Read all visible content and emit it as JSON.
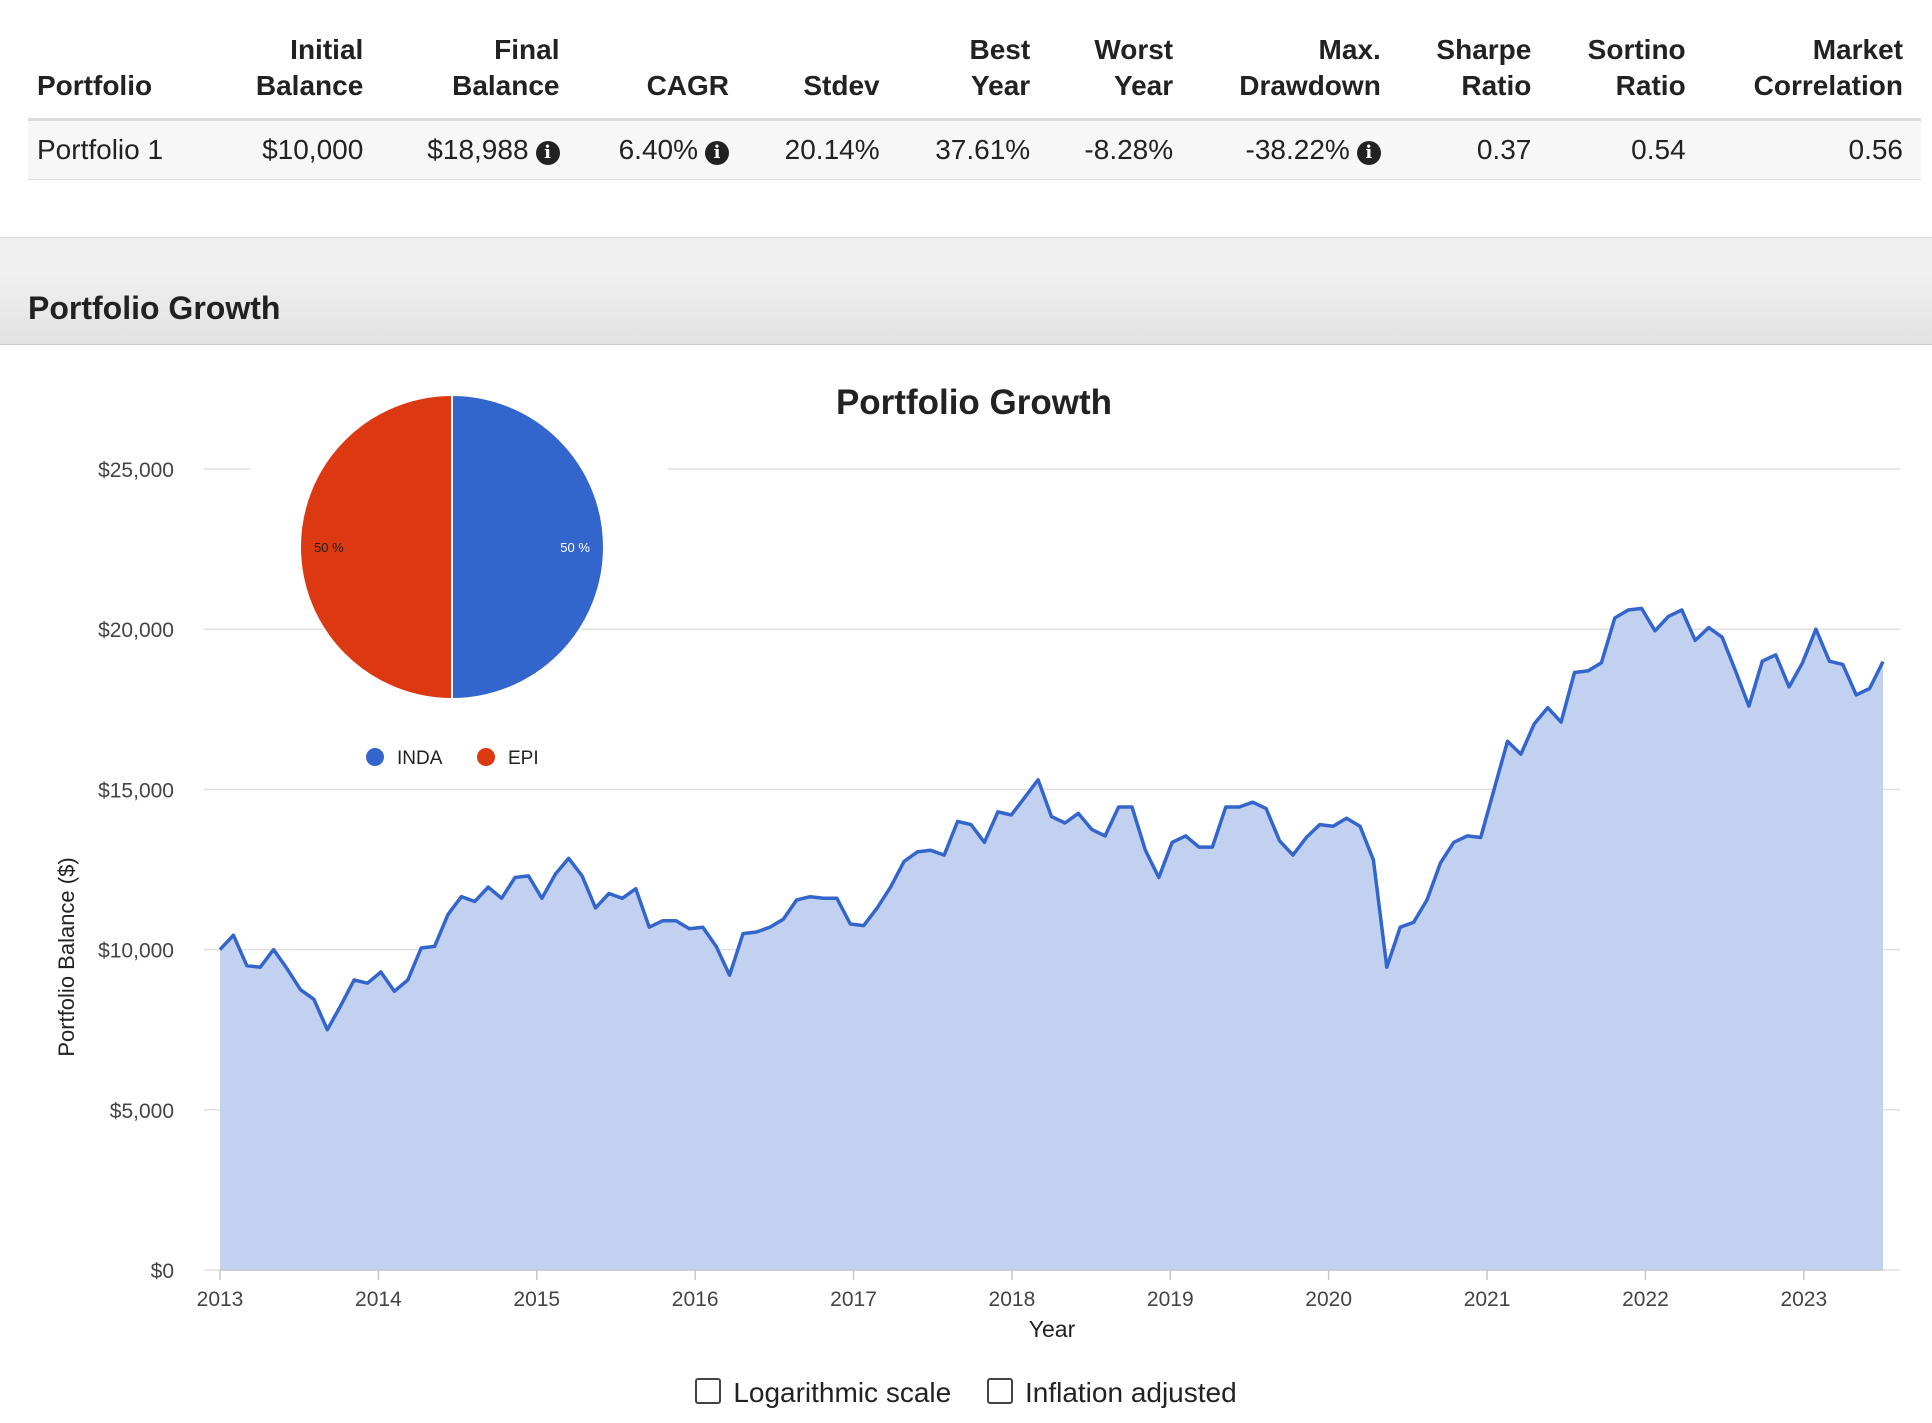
{
  "summary": {
    "headers": [
      [
        "Portfolio"
      ],
      [
        "Initial",
        "Balance"
      ],
      [
        "Final",
        "Balance"
      ],
      [
        "CAGR"
      ],
      [
        "Stdev"
      ],
      [
        "Best",
        "Year"
      ],
      [
        "Worst",
        "Year"
      ],
      [
        "Max.",
        "Drawdown"
      ],
      [
        "Sharpe",
        "Ratio"
      ],
      [
        "Sortino",
        "Ratio"
      ],
      [
        "Market",
        "Correlation"
      ]
    ],
    "row": {
      "portfolio": "Portfolio 1",
      "initial_balance": "$10,000",
      "final_balance": "$18,988",
      "cagr": "6.40%",
      "stdev": "20.14%",
      "best_year": "37.61%",
      "worst_year": "-8.28%",
      "max_drawdown": "-38.22%",
      "sharpe_ratio": "0.37",
      "sortino_ratio": "0.54",
      "market_correlation": "0.56"
    },
    "info_icon_glyph": "i"
  },
  "section": {
    "title": "Portfolio Growth"
  },
  "chart_data": [
    {
      "type": "area",
      "title": "Portfolio Growth",
      "xlabel": "Year",
      "ylabel": "Portfolio Balance ($)",
      "ylim": [
        0,
        25000
      ],
      "yticks": [
        0,
        5000,
        10000,
        15000,
        20000,
        25000
      ],
      "ytick_labels": [
        "$0",
        "$5,000",
        "$10,000",
        "$15,000",
        "$20,000",
        "$25,000"
      ],
      "xlim": [
        2013.0,
        2023.5
      ],
      "xticks": [
        2013,
        2014,
        2015,
        2016,
        2017,
        2018,
        2019,
        2020,
        2021,
        2022,
        2023
      ],
      "xtick_labels": [
        "2013",
        "2014",
        "2015",
        "2016",
        "2017",
        "2018",
        "2019",
        "2020",
        "2021",
        "2022",
        "2023"
      ],
      "grid": true,
      "colors": {
        "line": "#3366cc",
        "fill": "#c2d1f0",
        "grid": "#e0e0e0"
      },
      "series": [
        {
          "values": [
            10000,
            10450,
            9500,
            9450,
            10000,
            9400,
            8750,
            8450,
            7500,
            8250,
            9050,
            8950,
            9300,
            8700,
            9050,
            10050,
            10100,
            11100,
            11650,
            11500,
            11950,
            11600,
            12250,
            12300,
            11600,
            12350,
            12850,
            12300,
            11300,
            11750,
            11600,
            11900,
            10700,
            10900,
            10900,
            10650,
            10700,
            10100,
            9200,
            10500,
            10550,
            10700,
            10950,
            11550,
            11650,
            11600,
            11600,
            10800,
            10750,
            11300,
            11950,
            12750,
            13050,
            13100,
            12950,
            14000,
            13900,
            13350,
            14300,
            14200,
            14750,
            15300,
            14150,
            13950,
            14250,
            13750,
            13550,
            14450,
            14450,
            13100,
            12250,
            13350,
            13550,
            13200,
            13200,
            14450,
            14450,
            14600,
            14400,
            13400,
            12950,
            13500,
            13900,
            13850,
            14100,
            13850,
            12800,
            9450,
            10700,
            10850,
            11550,
            12700,
            13350,
            13550,
            13500,
            15000,
            16500,
            16100,
            17050,
            17550,
            17100,
            18650,
            18700,
            18950,
            20350,
            20600,
            20650,
            19950,
            20400,
            20600,
            19650,
            20050,
            19750,
            18700,
            17600,
            19000,
            19200,
            18200,
            18950,
            20000,
            19000,
            18900,
            17950,
            18150,
            18988
          ]
        }
      ]
    },
    {
      "type": "pie",
      "categories": [
        "INDA",
        "EPI"
      ],
      "values": [
        50,
        50
      ],
      "labels": [
        "50 %",
        "50 %"
      ],
      "colors": [
        "#3366cc",
        "#dc3912"
      ],
      "legend": "bottom"
    }
  ],
  "controls": {
    "log_scale_label": "Logarithmic scale",
    "inflation_label": "Inflation adjusted"
  }
}
